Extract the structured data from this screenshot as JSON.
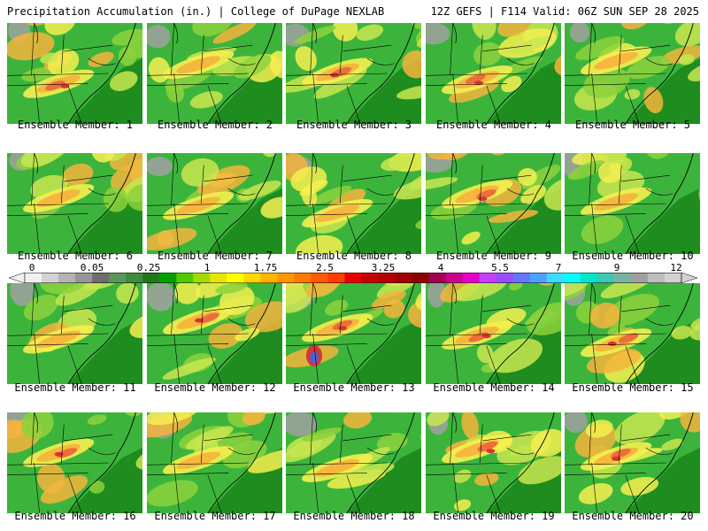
{
  "header": {
    "title_left": "Precipitation Accumulation (in.) | College of DuPage NEXLAB",
    "title_right": "12Z GEFS | F114 Valid: 06Z SUN SEP 28 2025"
  },
  "colors": {
    "green_dark": "#1e8c1e",
    "green": "#3cb43c",
    "light_green": "#8cd23c",
    "yellow_green": "#c8e650",
    "yellow": "#f5f050",
    "orange": "#f5b43c",
    "red_orange": "#eb6e3c",
    "red": "#dc3232",
    "purple": "#5a5ac8",
    "gray": "#a0a0a0",
    "light_gray": "#d2d2d2"
  },
  "colorbar": {
    "ticks": [
      "0",
      "0.05",
      "0.25",
      "1",
      "1.75",
      "2.5",
      "3.25",
      "4",
      "5.5",
      "7",
      "9",
      "12"
    ],
    "swatches": [
      "#f0f0f0",
      "#d2d2d2",
      "#b4b4b4",
      "#969696",
      "#6e6e6e",
      "#5a965a",
      "#3c8c3c",
      "#1e781e",
      "#00a000",
      "#50c800",
      "#a0dc00",
      "#e6e600",
      "#ffff00",
      "#ffd700",
      "#ffb400",
      "#ff9600",
      "#ff7800",
      "#ff5a00",
      "#ff3c00",
      "#e60000",
      "#c80000",
      "#b40000",
      "#a00000",
      "#8c0000",
      "#a00050",
      "#c8008c",
      "#e600c8",
      "#c83cff",
      "#9650ff",
      "#6478ff",
      "#50a0ff",
      "#3cdcff",
      "#00ffff",
      "#00e6c8",
      "#3cc8b4",
      "#78b4a0",
      "#a0a0a0",
      "#bebebe",
      "#d2d2d2"
    ]
  },
  "members": [
    {
      "label": "Ensemble Member: 1",
      "peak": "high"
    },
    {
      "label": "Ensemble Member: 2",
      "peak": "mid"
    },
    {
      "label": "Ensemble Member: 3",
      "peak": "high"
    },
    {
      "label": "Ensemble Member: 4",
      "peak": "high"
    },
    {
      "label": "Ensemble Member: 5",
      "peak": "mid"
    },
    {
      "label": "Ensemble Member: 6",
      "peak": "mid"
    },
    {
      "label": "Ensemble Member: 7",
      "peak": "mid"
    },
    {
      "label": "Ensemble Member: 8",
      "peak": "mid"
    },
    {
      "label": "Ensemble Member: 9",
      "peak": "high"
    },
    {
      "label": "Ensemble Member: 10",
      "peak": "mid"
    },
    {
      "label": "Ensemble Member: 11",
      "peak": "mid"
    },
    {
      "label": "Ensemble Member: 12",
      "peak": "high"
    },
    {
      "label": "Ensemble Member: 13",
      "peak": "extreme"
    },
    {
      "label": "Ensemble Member: 14",
      "peak": "high"
    },
    {
      "label": "Ensemble Member: 15",
      "peak": "high"
    },
    {
      "label": "Ensemble Member: 16",
      "peak": "high"
    },
    {
      "label": "Ensemble Member: 17",
      "peak": "mid"
    },
    {
      "label": "Ensemble Member: 18",
      "peak": "mid"
    },
    {
      "label": "Ensemble Member: 19",
      "peak": "high"
    },
    {
      "label": "Ensemble Member: 20",
      "peak": "high"
    }
  ]
}
